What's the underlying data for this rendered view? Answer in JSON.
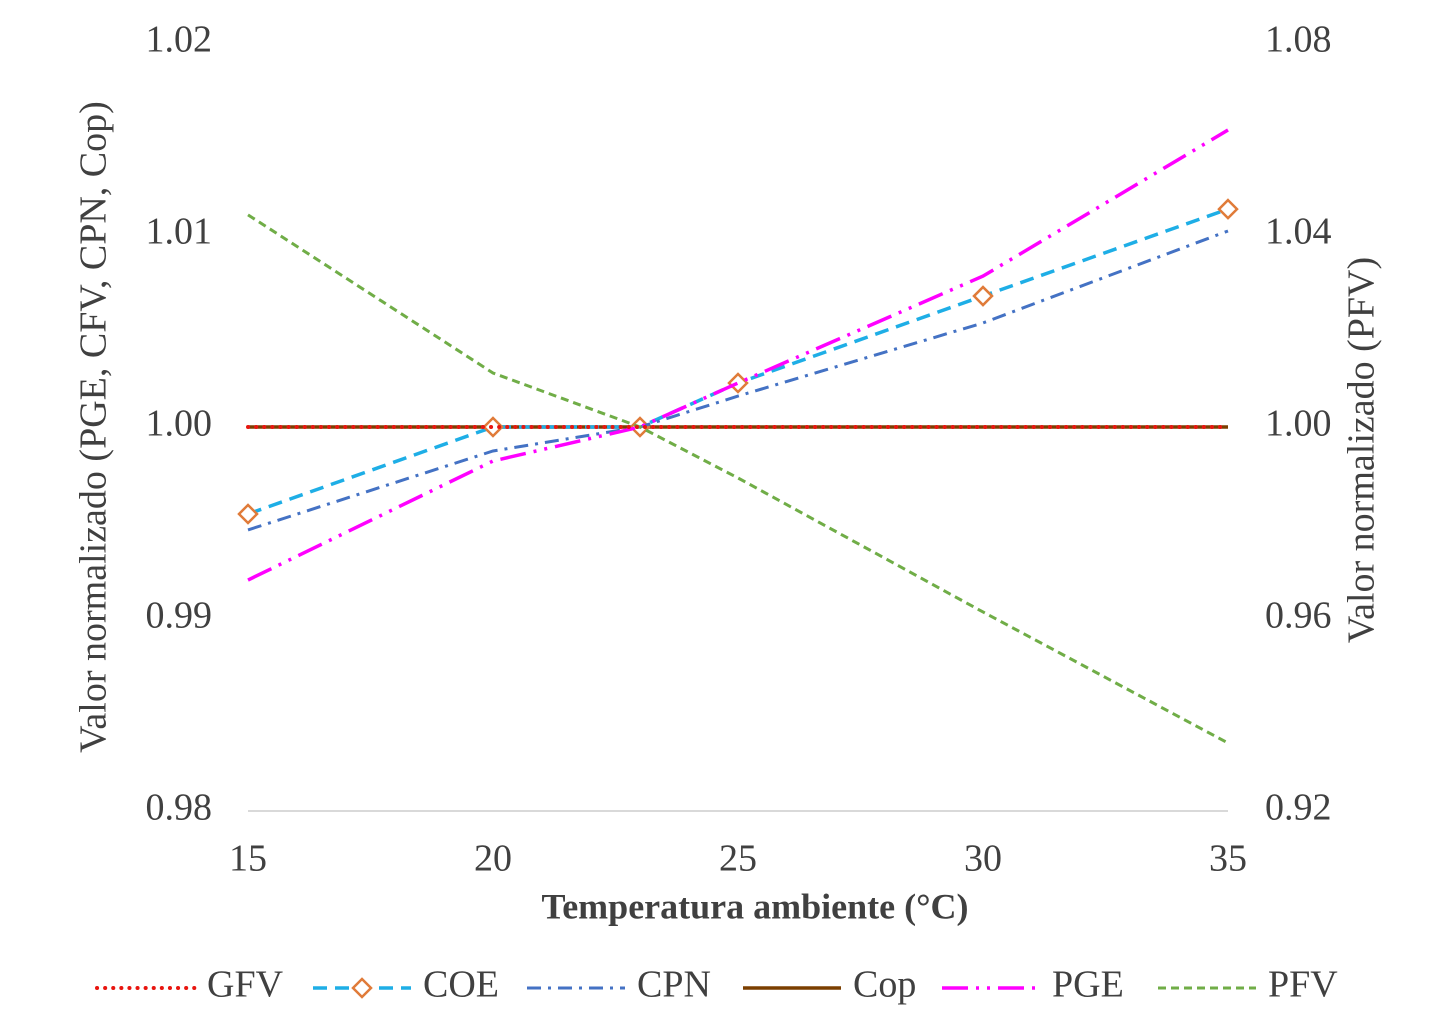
{
  "chart_data": {
    "type": "line",
    "x_label": "Temperatura ambiente (°C)",
    "y_label": "Valor normalizado (PGE, CFV, CPN, Cop)",
    "y2_label": "Valor normalizado (PFV)",
    "x": [
      15,
      20,
      23,
      25,
      30,
      35
    ],
    "xlim": [
      15,
      35
    ],
    "xticks": [
      15,
      20,
      25,
      30,
      35
    ],
    "ylim": [
      0.98,
      1.02
    ],
    "yticks": [
      0.98,
      0.99,
      {
        "value": 1,
        "label": "1.00"
      },
      1.01,
      1.02
    ],
    "y2lim": [
      0.92,
      1.08
    ],
    "y2ticks": [
      0.92,
      0.96,
      {
        "value": 1,
        "label": "1.00"
      },
      1.04,
      1.08
    ],
    "grid": false,
    "legend": "bottom",
    "series": [
      {
        "name": "GFV",
        "color": "#e8150f",
        "values": [
          1,
          1,
          1,
          1,
          1,
          1
        ]
      },
      {
        "name": "COE",
        "color": "#1eaee6",
        "marker": "diamond",
        "marker_color": "#e07b39",
        "values": [
          0.99547,
          1.0,
          1.0,
          1.00229,
          1.00682,
          1.01135
        ]
      },
      {
        "name": "CPN",
        "color": "#4472c4",
        "values": [
          0.99464,
          0.99875,
          1.0,
          1.00161,
          1.00542,
          1.01021
        ]
      },
      {
        "name": "Cop",
        "color": "#7b3f00",
        "values": [
          1,
          1,
          1,
          1,
          1,
          1
        ]
      },
      {
        "name": "PGE",
        "color": "#ff00ff",
        "values": [
          0.99203,
          0.99823,
          1.0,
          1.00229,
          1.00786,
          1.01547
        ]
      },
      {
        "name": "PFV",
        "color": "#70ad47",
        "axis": "y2",
        "values": [
          1.0442,
          1.01125,
          1.0,
          0.98938,
          0.96146,
          0.93417
        ]
      }
    ]
  }
}
